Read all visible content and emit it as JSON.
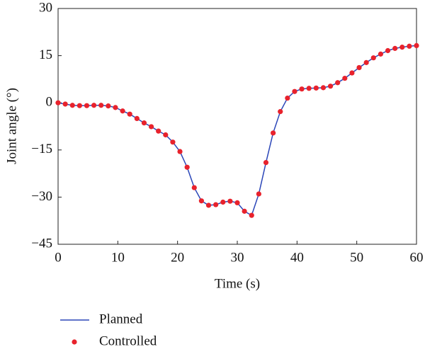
{
  "chart_data": {
    "type": "line",
    "xlabel": "Time (s)",
    "ylabel": "Joint angle (°)",
    "x": [
      0,
      1.2,
      2.4,
      3.6,
      4.8,
      6.0,
      7.2,
      8.4,
      9.6,
      10.8,
      12.0,
      13.2,
      14.4,
      15.6,
      16.8,
      18.0,
      19.2,
      20.4,
      21.6,
      22.8,
      24.0,
      25.2,
      26.4,
      27.6,
      28.8,
      30.0,
      31.2,
      32.4,
      33.6,
      34.8,
      36.0,
      37.2,
      38.4,
      39.6,
      40.8,
      42.0,
      43.2,
      44.4,
      45.6,
      46.8,
      48.0,
      49.2,
      50.4,
      51.6,
      52.8,
      54.0,
      55.2,
      56.4,
      57.6,
      58.8,
      60.0
    ],
    "series": [
      {
        "name": "Planned",
        "style": "line",
        "color": "#2b46b8",
        "values": [
          0,
          -0.4,
          -0.8,
          -0.9,
          -0.9,
          -0.8,
          -0.8,
          -1.0,
          -1.5,
          -2.6,
          -3.6,
          -5.0,
          -6.4,
          -7.6,
          -9.0,
          -10.2,
          -12.5,
          -15.5,
          -20.5,
          -27.0,
          -31.2,
          -32.6,
          -32.4,
          -31.6,
          -31.3,
          -31.8,
          -34.5,
          -35.8,
          -29.0,
          -19.0,
          -9.6,
          -2.8,
          1.5,
          3.6,
          4.4,
          4.6,
          4.7,
          4.8,
          5.3,
          6.4,
          7.8,
          9.5,
          11.2,
          12.8,
          14.3,
          15.5,
          16.6,
          17.3,
          17.7,
          18.0,
          18.2
        ]
      },
      {
        "name": "Controlled",
        "style": "markers",
        "color": "#e8222c",
        "values": [
          0,
          -0.4,
          -0.8,
          -0.9,
          -0.9,
          -0.8,
          -0.8,
          -1.0,
          -1.5,
          -2.6,
          -3.6,
          -5.0,
          -6.4,
          -7.6,
          -9.0,
          -10.2,
          -12.5,
          -15.5,
          -20.5,
          -27.0,
          -31.2,
          -32.6,
          -32.4,
          -31.6,
          -31.3,
          -31.8,
          -34.5,
          -35.8,
          -29.0,
          -19.0,
          -9.6,
          -2.8,
          1.5,
          3.6,
          4.4,
          4.6,
          4.7,
          4.8,
          5.3,
          6.4,
          7.8,
          9.5,
          11.2,
          12.8,
          14.3,
          15.5,
          16.6,
          17.3,
          17.7,
          18.0,
          18.2
        ]
      }
    ],
    "xlim": [
      0,
      60
    ],
    "xticks": [
      0,
      10,
      20,
      30,
      40,
      50,
      60
    ],
    "ylim": [
      -45,
      30
    ],
    "yticks": [
      {
        "value": -45,
        "label": "−45"
      },
      {
        "value": -30,
        "label": "−30"
      },
      {
        "value": -15,
        "label": "−15"
      },
      0,
      15,
      30
    ],
    "grid": false,
    "legend": "below"
  }
}
